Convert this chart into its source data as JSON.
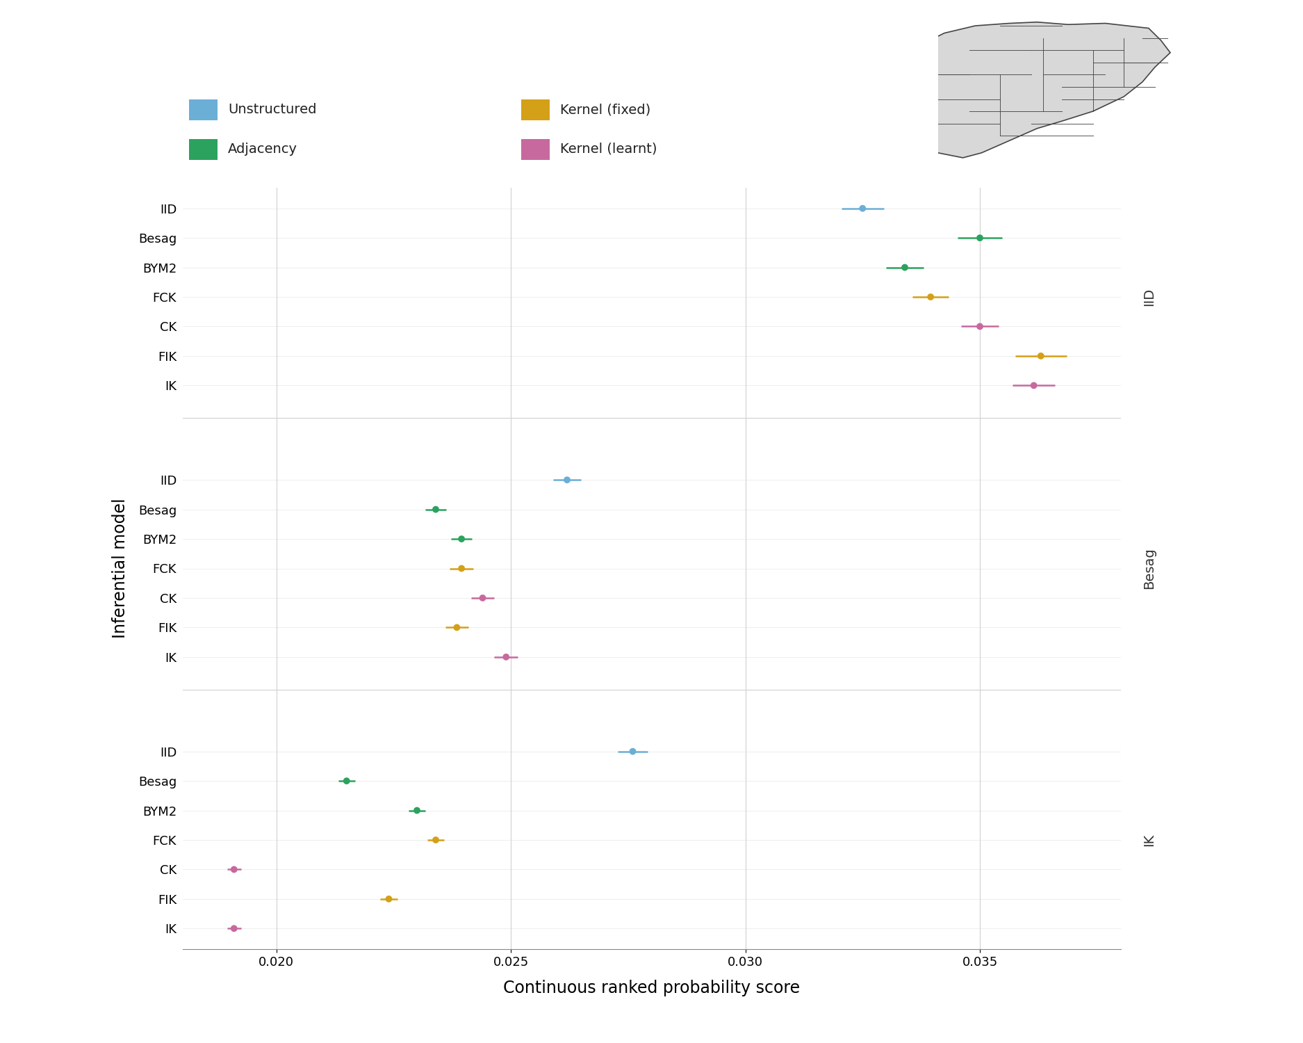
{
  "xlabel": "Continuous ranked probability score",
  "ylabel": "Inferential model",
  "background_color": "#ffffff",
  "grid_color": "#d0d0d0",
  "colors": {
    "Unstructured": "#6baed6",
    "Adjacency": "#2ca25f",
    "Kernel (fixed)": "#d4a017",
    "Kernel (learnt)": "#c7699e"
  },
  "sim_panels": [
    "IID",
    "Besag",
    "IK"
  ],
  "infer_models": [
    "IID",
    "Besag",
    "BYM2",
    "FCK",
    "CK",
    "FIK",
    "IK"
  ],
  "model_color_map": {
    "IID": "Unstructured",
    "Besag": "Adjacency",
    "BYM2": "Adjacency",
    "FCK": "Kernel (fixed)",
    "CK": "Kernel (learnt)",
    "FIK": "Kernel (fixed)",
    "IK": "Kernel (learnt)"
  },
  "data": {
    "IID": {
      "IID": {
        "mean": 0.0325,
        "se": 0.00045
      },
      "Besag": {
        "mean": 0.035,
        "se": 0.00048
      },
      "BYM2": {
        "mean": 0.0334,
        "se": 0.0004
      },
      "FCK": {
        "mean": 0.03395,
        "se": 0.00038
      },
      "CK": {
        "mean": 0.035,
        "se": 0.0004
      },
      "FIK": {
        "mean": 0.0363,
        "se": 0.00055
      },
      "IK": {
        "mean": 0.03615,
        "se": 0.00045
      }
    },
    "Besag": {
      "IID": {
        "mean": 0.0262,
        "se": 0.0003
      },
      "Besag": {
        "mean": 0.0234,
        "se": 0.00022
      },
      "BYM2": {
        "mean": 0.02395,
        "se": 0.00022
      },
      "FCK": {
        "mean": 0.02395,
        "se": 0.00025
      },
      "CK": {
        "mean": 0.0244,
        "se": 0.00025
      },
      "FIK": {
        "mean": 0.02385,
        "se": 0.00025
      },
      "IK": {
        "mean": 0.0249,
        "se": 0.00025
      }
    },
    "IK": {
      "IID": {
        "mean": 0.0276,
        "se": 0.00032
      },
      "Besag": {
        "mean": 0.0215,
        "se": 0.00018
      },
      "BYM2": {
        "mean": 0.023,
        "se": 0.00018
      },
      "FCK": {
        "mean": 0.0234,
        "se": 0.00018
      },
      "CK": {
        "mean": 0.0191,
        "se": 0.00015
      },
      "FIK": {
        "mean": 0.0224,
        "se": 0.00018
      },
      "IK": {
        "mean": 0.0191,
        "se": 0.00015
      }
    }
  },
  "xlim": [
    0.018,
    0.038
  ],
  "xticks": [
    0.02,
    0.025,
    0.03,
    0.035
  ],
  "legend_entries": [
    {
      "label": "Unstructured",
      "color": "#6baed6"
    },
    {
      "label": "Adjacency",
      "color": "#2ca25f"
    },
    {
      "label": "Kernel (fixed)",
      "color": "#d4a017"
    },
    {
      "label": "Kernel (learnt)",
      "color": "#c7699e"
    }
  ]
}
